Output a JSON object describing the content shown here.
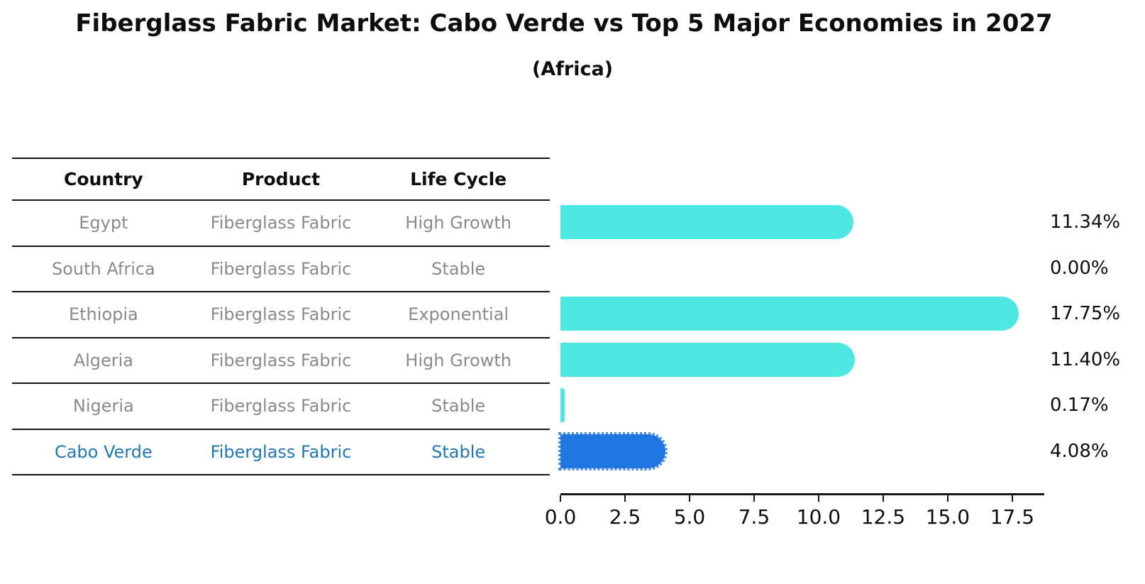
{
  "title": "Fiberglass Fabric Market: Cabo Verde vs Top 5 Major Economies in 2027",
  "subtitle": "(Africa)",
  "table": {
    "headers": [
      "Country",
      "Product",
      "Life Cycle"
    ],
    "rows": [
      {
        "country": "Egypt",
        "product": "Fiberglass Fabric",
        "life_cycle": "High Growth",
        "highlight": false
      },
      {
        "country": "South Africa",
        "product": "Fiberglass Fabric",
        "life_cycle": "Stable",
        "highlight": false
      },
      {
        "country": "Ethiopia",
        "product": "Fiberglass Fabric",
        "life_cycle": "Exponential",
        "highlight": false
      },
      {
        "country": "Algeria",
        "product": "Fiberglass Fabric",
        "life_cycle": "High Growth",
        "highlight": false
      },
      {
        "country": "Nigeria",
        "product": "Fiberglass Fabric",
        "life_cycle": "Stable",
        "highlight": false
      },
      {
        "country": "Cabo Verde",
        "product": "Fiberglass Fabric",
        "life_cycle": "Stable",
        "highlight": true
      }
    ]
  },
  "chart_data": {
    "type": "bar",
    "orientation": "horizontal",
    "title": "Fiberglass Fabric Market: Cabo Verde vs Top 5 Major Economies in 2027",
    "subtitle": "(Africa)",
    "categories": [
      "Egypt",
      "South Africa",
      "Ethiopia",
      "Algeria",
      "Nigeria",
      "Cabo Verde"
    ],
    "values": [
      11.34,
      0.0,
      17.75,
      11.4,
      0.17,
      4.08
    ],
    "value_labels": [
      "11.34%",
      "0.00%",
      "17.75%",
      "11.40%",
      "0.17%",
      "4.08%"
    ],
    "xlabel": "",
    "ylabel": "",
    "xlim": [
      0,
      18.74
    ],
    "xticks": [
      0,
      2.5,
      5,
      7.5,
      10,
      12.5,
      15,
      17.5
    ],
    "xtick_labels": [
      "0.0",
      "2.5",
      "5.0",
      "7.5",
      "10.0",
      "12.5",
      "15.0",
      "17.5"
    ],
    "grid": false,
    "legend": false,
    "bar_color": "#4de8e2",
    "highlight_index": 5,
    "highlight_color": "#2176e0",
    "highlight_border_color": "#3c8ef0"
  },
  "colors": {
    "bar": "#4de8e2",
    "highlight_bar": "#2176e0",
    "highlight_text": "#1f77b4",
    "table_text": "#8a8a8a",
    "axis": "#141414"
  }
}
